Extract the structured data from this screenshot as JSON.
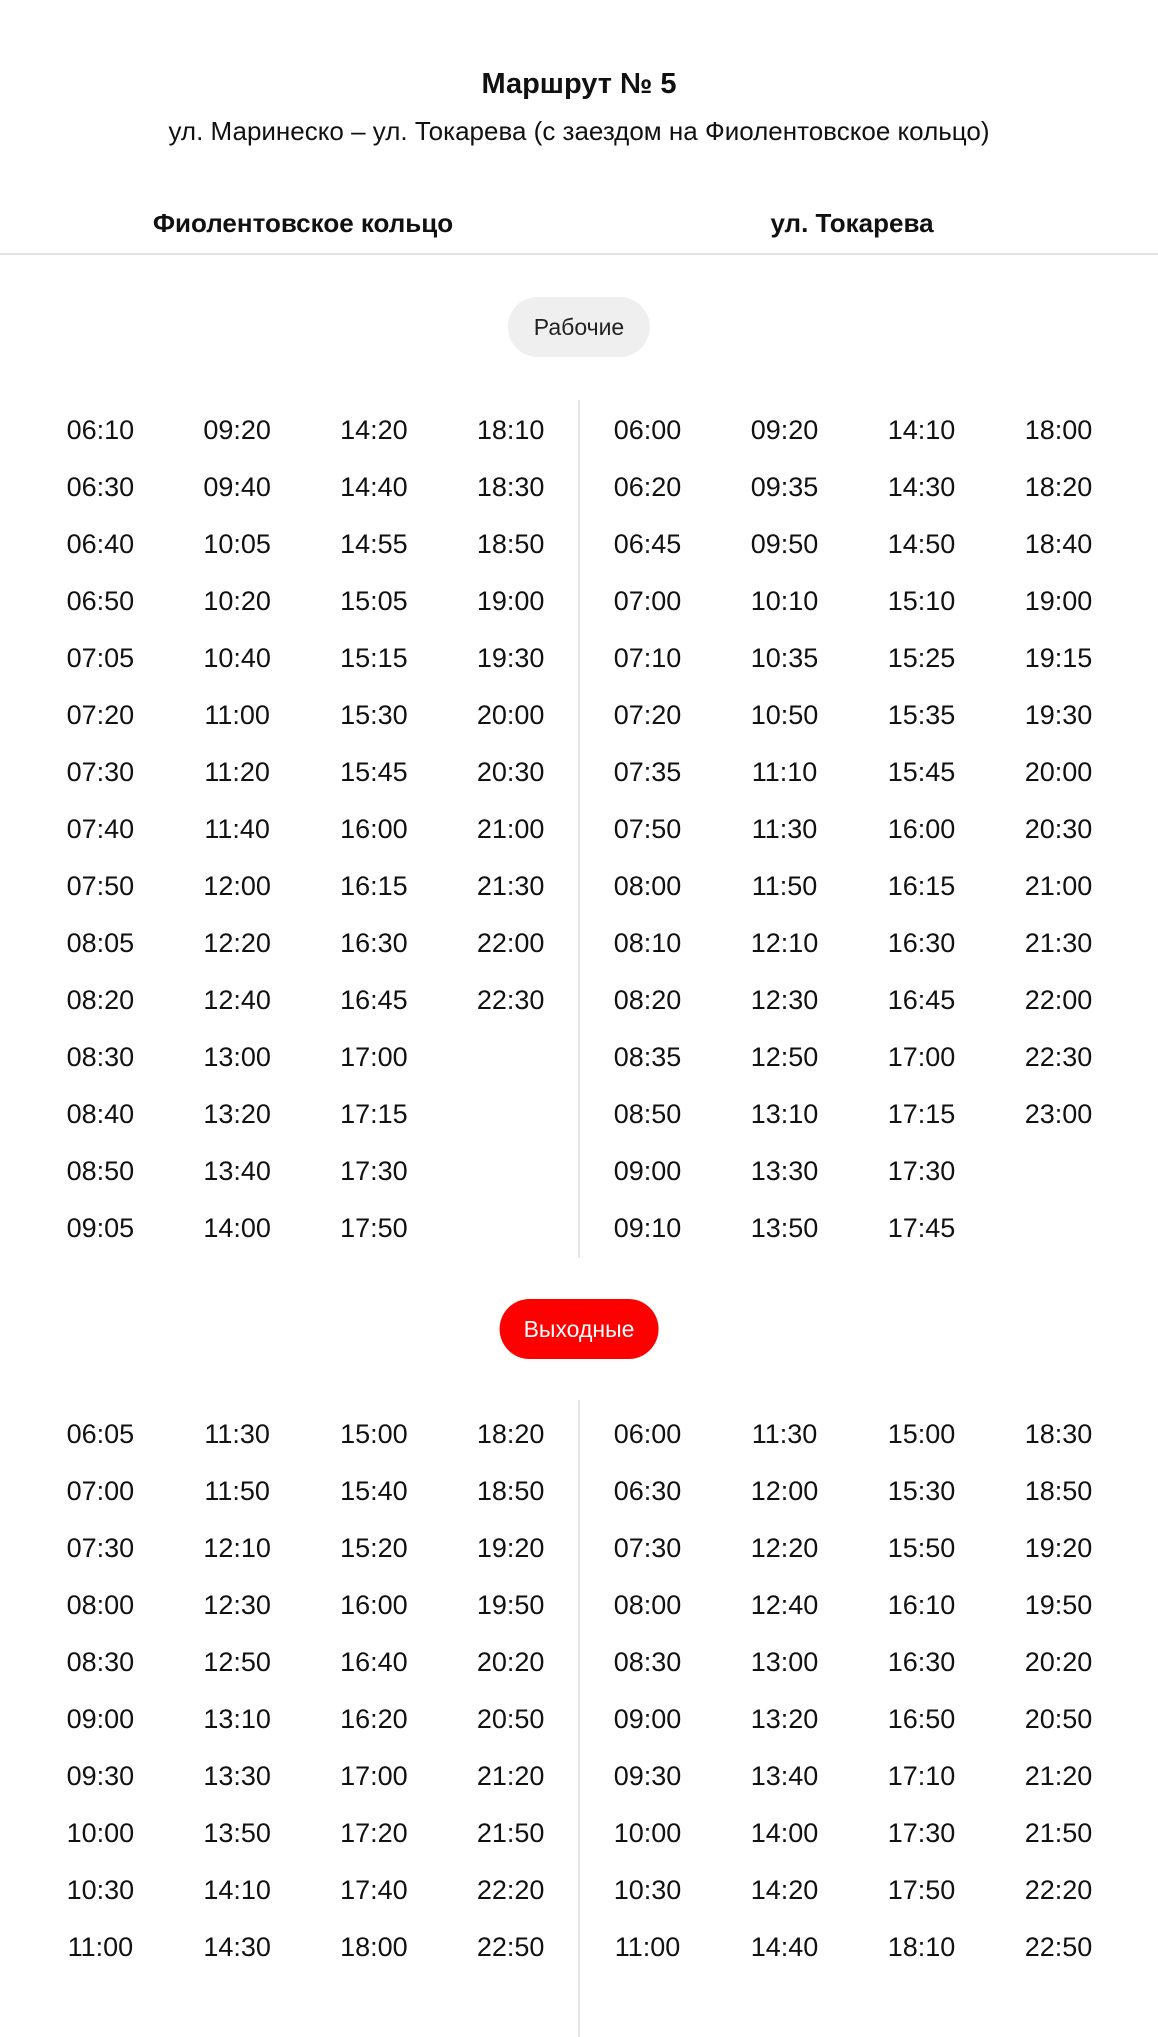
{
  "header": {
    "title": "Маршрут № 5",
    "subtitle": "ул. Маринеско – ул. Токарева (с заездом на Фиолентовское кольцо)"
  },
  "directions": [
    "Фиолентовское кольцо",
    "ул. Токарева"
  ],
  "colors": {
    "weekend_accent": "#ff0000",
    "weekday_pill": "#efefef"
  },
  "weekdays": {
    "label": "Рабочие",
    "left": [
      [
        "06:10",
        "06:30",
        "06:40",
        "06:50",
        "07:05",
        "07:20",
        "07:30",
        "07:40",
        "07:50",
        "08:05",
        "08:20",
        "08:30",
        "08:40",
        "08:50",
        "09:05"
      ],
      [
        "09:20",
        "09:40",
        "10:05",
        "10:20",
        "10:40",
        "11:00",
        "11:20",
        "11:40",
        "12:00",
        "12:20",
        "12:40",
        "13:00",
        "13:20",
        "13:40",
        "14:00"
      ],
      [
        "14:20",
        "14:40",
        "14:55",
        "15:05",
        "15:15",
        "15:30",
        "15:45",
        "16:00",
        "16:15",
        "16:30",
        "16:45",
        "17:00",
        "17:15",
        "17:30",
        "17:50"
      ],
      [
        "18:10",
        "18:30",
        "18:50",
        "19:00",
        "19:30",
        "20:00",
        "20:30",
        "21:00",
        "21:30",
        "22:00",
        "22:30"
      ]
    ],
    "right": [
      [
        "06:00",
        "06:20",
        "06:45",
        "07:00",
        "07:10",
        "07:20",
        "07:35",
        "07:50",
        "08:00",
        "08:10",
        "08:20",
        "08:35",
        "08:50",
        "09:00",
        "09:10"
      ],
      [
        "09:20",
        "09:35",
        "09:50",
        "10:10",
        "10:35",
        "10:50",
        "11:10",
        "11:30",
        "11:50",
        "12:10",
        "12:30",
        "12:50",
        "13:10",
        "13:30",
        "13:50"
      ],
      [
        "14:10",
        "14:30",
        "14:50",
        "15:10",
        "15:25",
        "15:35",
        "15:45",
        "16:00",
        "16:15",
        "16:30",
        "16:45",
        "17:00",
        "17:15",
        "17:30",
        "17:45"
      ],
      [
        "18:00",
        "18:20",
        "18:40",
        "19:00",
        "19:15",
        "19:30",
        "20:00",
        "20:30",
        "21:00",
        "21:30",
        "22:00",
        "22:30",
        "23:00"
      ]
    ]
  },
  "weekends": {
    "label": "Выходные",
    "left": [
      [
        "06:05",
        "07:00",
        "07:30",
        "08:00",
        "08:30",
        "09:00",
        "09:30",
        "10:00",
        "10:30",
        "11:00"
      ],
      [
        "11:30",
        "11:50",
        "12:10",
        "12:30",
        "12:50",
        "13:10",
        "13:30",
        "13:50",
        "14:10",
        "14:30"
      ],
      [
        "15:00",
        "15:40",
        "15:20",
        "16:00",
        "16:40",
        "16:20",
        "17:00",
        "17:20",
        "17:40",
        "18:00"
      ],
      [
        "18:20",
        "18:50",
        "19:20",
        "19:50",
        "20:20",
        "20:50",
        "21:20",
        "21:50",
        "22:20",
        "22:50"
      ]
    ],
    "right": [
      [
        "06:00",
        "06:30",
        "07:30",
        "08:00",
        "08:30",
        "09:00",
        "09:30",
        "10:00",
        "10:30",
        "11:00"
      ],
      [
        "11:30",
        "12:00",
        "12:20",
        "12:40",
        "13:00",
        "13:20",
        "13:40",
        "14:00",
        "14:20",
        "14:40"
      ],
      [
        "15:00",
        "15:30",
        "15:50",
        "16:10",
        "16:30",
        "16:50",
        "17:10",
        "17:30",
        "17:50",
        "18:10"
      ],
      [
        "18:30",
        "18:50",
        "19:20",
        "19:50",
        "20:20",
        "20:50",
        "21:20",
        "21:50",
        "22:20",
        "22:50"
      ]
    ]
  }
}
